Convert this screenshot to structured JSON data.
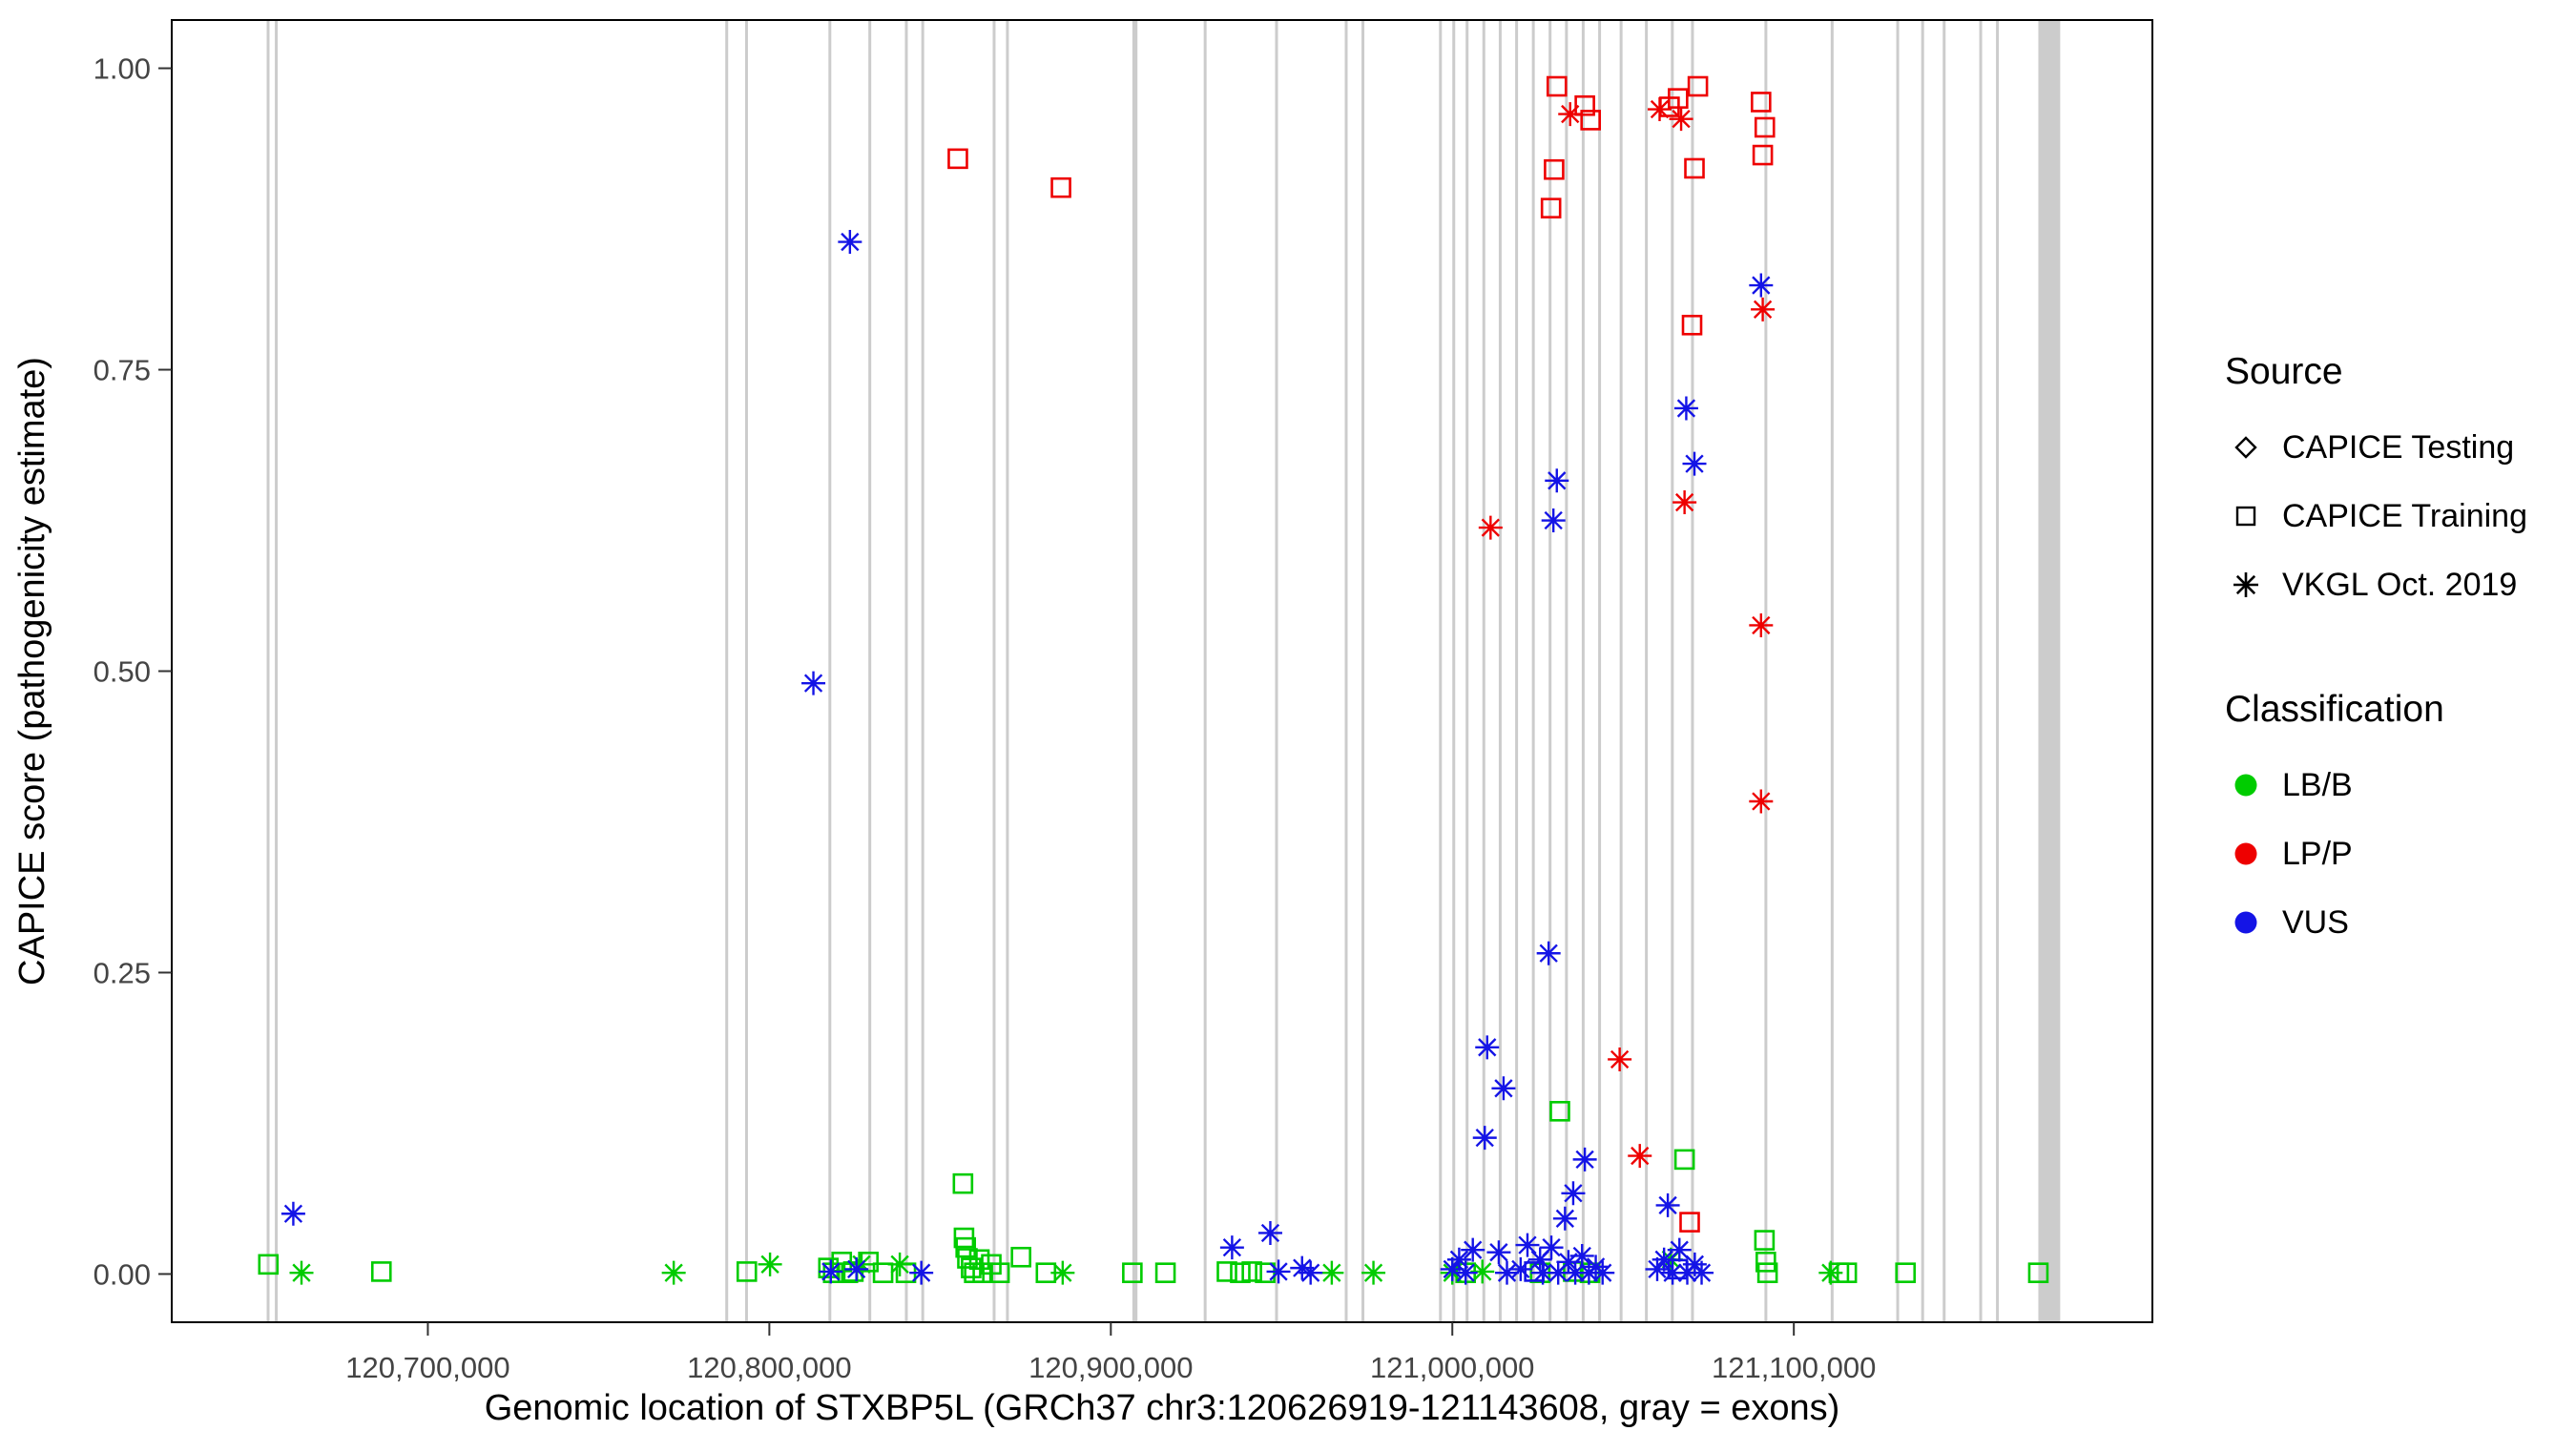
{
  "legend": {
    "source": {
      "title": "Source",
      "items": [
        {
          "label": "CAPICE Testing",
          "shape": "diamond"
        },
        {
          "label": "CAPICE Training",
          "shape": "square"
        },
        {
          "label": "VKGL Oct. 2019",
          "shape": "asterisk"
        }
      ]
    },
    "classification": {
      "title": "Classification",
      "items": [
        {
          "label": "LB/B",
          "color": "#00cc00"
        },
        {
          "label": "LP/P",
          "color": "#ee0000"
        },
        {
          "label": "VUS",
          "color": "#1414e6"
        }
      ]
    }
  },
  "chart_data": {
    "type": "scatter",
    "title": "",
    "xlabel": "Genomic location of STXBP5L (GRCh37 chr3:120626919-121143608, gray = exons)",
    "ylabel": "CAPICE score (pathogenicity estimate)",
    "xlim": [
      120625000,
      121205000
    ],
    "ylim": [
      -0.04,
      1.04
    ],
    "grid": "off",
    "legend_position": "right",
    "x_ticks": [
      {
        "value": 120700000,
        "label": "120,700,000"
      },
      {
        "value": 120800000,
        "label": "120,800,000"
      },
      {
        "value": 120900000,
        "label": "120,900,000"
      },
      {
        "value": 121000000,
        "label": "121,000,000"
      },
      {
        "value": 121100000,
        "label": "121,100,000"
      }
    ],
    "y_ticks": [
      {
        "value": 0.0,
        "label": "0.00"
      },
      {
        "value": 0.25,
        "label": "0.25"
      },
      {
        "value": 0.5,
        "label": "0.50"
      },
      {
        "value": 0.75,
        "label": "0.75"
      },
      {
        "value": 1.0,
        "label": "1.00"
      }
    ],
    "exon_color": "#cccccc",
    "exons": [
      [
        120652800,
        120653600
      ],
      [
        120655200,
        120656000
      ],
      [
        120787100,
        120787900
      ],
      [
        120792900,
        120793700
      ],
      [
        120817300,
        120818100
      ],
      [
        120829000,
        120829800
      ],
      [
        120839700,
        120840500
      ],
      [
        120844500,
        120845300
      ],
      [
        120865400,
        120866200
      ],
      [
        120869300,
        120870100
      ],
      [
        120906300,
        120907800
      ],
      [
        120927200,
        120928000
      ],
      [
        120948100,
        120948900
      ],
      [
        120968500,
        120969300
      ],
      [
        120973400,
        120974200
      ],
      [
        120996100,
        120996900
      ],
      [
        121000000,
        121000800
      ],
      [
        121003900,
        121004700
      ],
      [
        121008800,
        121009600
      ],
      [
        121013600,
        121014400
      ],
      [
        121018400,
        121019200
      ],
      [
        121023300,
        121024100
      ],
      [
        121028200,
        121029000
      ],
      [
        121033000,
        121033800
      ],
      [
        121037900,
        121038700
      ],
      [
        121042700,
        121043500
      ],
      [
        121049000,
        121049800
      ],
      [
        121056400,
        121057200
      ],
      [
        121064000,
        121064800
      ],
      [
        121069900,
        121070700
      ],
      [
        121091400,
        121092200
      ],
      [
        121110800,
        121111600
      ],
      [
        121130000,
        121130800
      ],
      [
        121137300,
        121138100
      ],
      [
        121143600,
        121144400
      ],
      [
        121154300,
        121155100
      ],
      [
        121159200,
        121160000
      ],
      [
        121171600,
        121178000
      ]
    ],
    "series": [
      {
        "name": "LB/B",
        "color": "#00cc00",
        "points": [
          [
            120653300,
            0.008,
            "sq"
          ],
          [
            120663000,
            0.001,
            "ast"
          ],
          [
            120686400,
            0.002,
            "sq"
          ],
          [
            120772000,
            0.001,
            "ast"
          ],
          [
            120793400,
            0.002,
            "sq"
          ],
          [
            120800200,
            0.008,
            "ast"
          ],
          [
            120817300,
            0.005,
            "sq"
          ],
          [
            120818700,
            0.001,
            "sq"
          ],
          [
            120821200,
            0.01,
            "sq"
          ],
          [
            120823000,
            0.001,
            "sq"
          ],
          [
            120824600,
            0.002,
            "sq"
          ],
          [
            120827000,
            0.008,
            "ast"
          ],
          [
            120829000,
            0.01,
            "sq"
          ],
          [
            120833300,
            0.001,
            "sq"
          ],
          [
            120838200,
            0.008,
            "ast"
          ],
          [
            120840000,
            0.001,
            "sq"
          ],
          [
            120856700,
            0.075,
            "sq"
          ],
          [
            120857000,
            0.03,
            "sq"
          ],
          [
            120857500,
            0.022,
            "sq"
          ],
          [
            120858000,
            0.013,
            "sq"
          ],
          [
            120859100,
            0.005,
            "sq"
          ],
          [
            120860000,
            0.001,
            "sq"
          ],
          [
            120861500,
            0.012,
            "sq"
          ],
          [
            120862500,
            0.001,
            "sq"
          ],
          [
            120865000,
            0.008,
            "sq"
          ],
          [
            120867400,
            0.001,
            "sq"
          ],
          [
            120873700,
            0.014,
            "sq"
          ],
          [
            120881000,
            0.001,
            "sq"
          ],
          [
            120885900,
            0.001,
            "ast"
          ],
          [
            120906300,
            0.001,
            "sq"
          ],
          [
            120916000,
            0.001,
            "sq"
          ],
          [
            120934000,
            0.002,
            "sq"
          ],
          [
            120937900,
            0.001,
            "sq"
          ],
          [
            120941300,
            0.002,
            "sq"
          ],
          [
            120945200,
            0.001,
            "sq"
          ],
          [
            120964700,
            0.001,
            "ast"
          ],
          [
            120976900,
            0.001,
            "ast"
          ],
          [
            121000000,
            0.001,
            "ast"
          ],
          [
            121003900,
            0.001,
            "sq"
          ],
          [
            121008800,
            0.002,
            "ast"
          ],
          [
            121031500,
            0.135,
            "sq"
          ],
          [
            121068000,
            0.095,
            "sq"
          ],
          [
            121064000,
            0.012,
            "ast"
          ],
          [
            121025700,
            0.001,
            "sq"
          ],
          [
            121035400,
            0.002,
            "sq"
          ],
          [
            121040300,
            0.001,
            "sq"
          ],
          [
            121091400,
            0.028,
            "sq"
          ],
          [
            121091800,
            0.01,
            "sq"
          ],
          [
            121092300,
            0.001,
            "sq"
          ],
          [
            121110800,
            0.001,
            "ast"
          ],
          [
            121113200,
            0.001,
            "sq"
          ],
          [
            121115500,
            0.001,
            "sq"
          ],
          [
            121132700,
            0.001,
            "sq"
          ],
          [
            121171600,
            0.001,
            "sq"
          ]
        ]
      },
      {
        "name": "LP/P",
        "color": "#ee0000",
        "points": [
          [
            120855200,
            0.925,
            "sq"
          ],
          [
            120885400,
            0.901,
            "sq"
          ],
          [
            121030600,
            0.985,
            "sq"
          ],
          [
            121029800,
            0.916,
            "sq"
          ],
          [
            121028900,
            0.884,
            "sq"
          ],
          [
            121038800,
            0.969,
            "sq"
          ],
          [
            121040500,
            0.957,
            "sq"
          ],
          [
            121063600,
            0.968,
            "sq"
          ],
          [
            121066100,
            0.975,
            "sq"
          ],
          [
            121071900,
            0.985,
            "sq"
          ],
          [
            121070900,
            0.917,
            "sq"
          ],
          [
            121070200,
            0.787,
            "sq"
          ],
          [
            121090400,
            0.972,
            "sq"
          ],
          [
            121091500,
            0.951,
            "sq"
          ],
          [
            121090900,
            0.928,
            "sq"
          ],
          [
            121069500,
            0.043,
            "sq"
          ],
          [
            121011200,
            0.619,
            "ast"
          ],
          [
            121034500,
            0.962,
            "ast"
          ],
          [
            121060700,
            0.966,
            "ast"
          ],
          [
            121067000,
            0.958,
            "ast"
          ],
          [
            121068000,
            0.64,
            "ast"
          ],
          [
            121049000,
            0.178,
            "ast"
          ],
          [
            121054900,
            0.098,
            "ast"
          ],
          [
            121090400,
            0.538,
            "ast"
          ],
          [
            121090400,
            0.392,
            "ast"
          ],
          [
            121090900,
            0.8,
            "ast"
          ]
        ]
      },
      {
        "name": "VUS",
        "color": "#1414e6",
        "points": [
          [
            120660600,
            0.05,
            "ast"
          ],
          [
            120812900,
            0.49,
            "ast"
          ],
          [
            120823600,
            0.856,
            "ast"
          ],
          [
            120818000,
            0.002,
            "ast"
          ],
          [
            120825500,
            0.004,
            "ast"
          ],
          [
            120844500,
            0.001,
            "ast"
          ],
          [
            120935500,
            0.022,
            "ast"
          ],
          [
            120946700,
            0.034,
            "ast"
          ],
          [
            120949100,
            0.002,
            "ast"
          ],
          [
            120956000,
            0.005,
            "ast"
          ],
          [
            120958500,
            0.001,
            "ast"
          ],
          [
            121010200,
            0.188,
            "ast"
          ],
          [
            121015000,
            0.154,
            "ast"
          ],
          [
            121009500,
            0.113,
            "ast"
          ],
          [
            121028200,
            0.266,
            "ast"
          ],
          [
            121030600,
            0.658,
            "ast"
          ],
          [
            121029600,
            0.625,
            "ast"
          ],
          [
            121038800,
            0.095,
            "ast"
          ],
          [
            121035400,
            0.067,
            "ast"
          ],
          [
            121033000,
            0.046,
            "ast"
          ],
          [
            121000000,
            0.004,
            "ast"
          ],
          [
            121002000,
            0.012,
            "ast"
          ],
          [
            121003900,
            0.001,
            "ast"
          ],
          [
            121006000,
            0.02,
            "ast"
          ],
          [
            121013600,
            0.018,
            "ast"
          ],
          [
            121016000,
            0.001,
            "ast"
          ],
          [
            121020000,
            0.004,
            "ast"
          ],
          [
            121022000,
            0.024,
            "ast"
          ],
          [
            121025700,
            0.012,
            "ast"
          ],
          [
            121026500,
            0.001,
            "ast"
          ],
          [
            121029000,
            0.022,
            "ast"
          ],
          [
            121031000,
            0.001,
            "ast"
          ],
          [
            121034000,
            0.01,
            "ast"
          ],
          [
            121036000,
            0.001,
            "ast"
          ],
          [
            121038000,
            0.015,
            "ast"
          ],
          [
            121040000,
            0.001,
            "ast"
          ],
          [
            121042000,
            0.006,
            "ast"
          ],
          [
            121044000,
            0.001,
            "ast"
          ],
          [
            121068500,
            0.718,
            "ast"
          ],
          [
            121070900,
            0.672,
            "ast"
          ],
          [
            121063100,
            0.057,
            "ast"
          ],
          [
            121060000,
            0.004,
            "ast"
          ],
          [
            121062000,
            0.012,
            "ast"
          ],
          [
            121064500,
            0.001,
            "ast"
          ],
          [
            121066500,
            0.02,
            "ast"
          ],
          [
            121068800,
            0.001,
            "ast"
          ],
          [
            121071000,
            0.008,
            "ast"
          ],
          [
            121073000,
            0.001,
            "ast"
          ],
          [
            121090400,
            0.82,
            "ast"
          ],
          [
            121024000,
            0.002,
            "sq"
          ],
          [
            121066000,
            0.004,
            "sq"
          ]
        ]
      }
    ]
  }
}
